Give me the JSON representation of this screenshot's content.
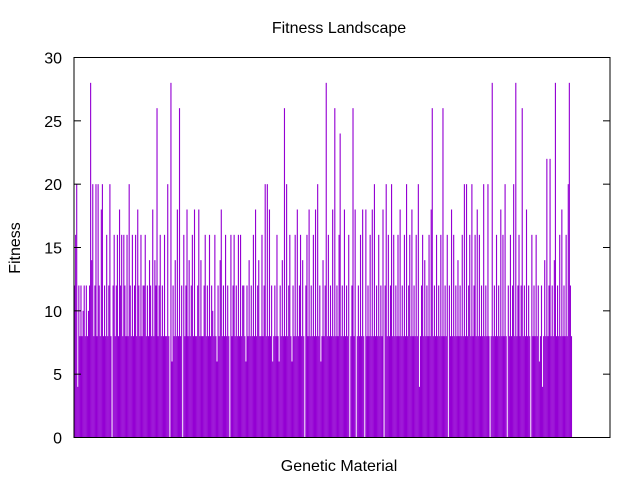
{
  "chart_data": {
    "type": "bar",
    "title": "Fitness Landscape",
    "xlabel": "Genetic Material",
    "ylabel": "Fitness",
    "ylim": [
      0,
      30
    ],
    "yticks": [
      0,
      5,
      10,
      15,
      20,
      25,
      30
    ],
    "grid": false,
    "legend": "none",
    "bar_color": "#9400d3",
    "series": [
      {
        "values": [
          12,
          16,
          20,
          4,
          12,
          8,
          12,
          8,
          10,
          12,
          8,
          12,
          8,
          10,
          12,
          28,
          14,
          20,
          8,
          12,
          20,
          8,
          20,
          12,
          8,
          18,
          20,
          8,
          12,
          8,
          16,
          8,
          12,
          20,
          8,
          0,
          12,
          16,
          8,
          12,
          16,
          8,
          18,
          12,
          16,
          8,
          16,
          12,
          8,
          16,
          8,
          20,
          12,
          8,
          16,
          8,
          12,
          16,
          8,
          18,
          12,
          8,
          16,
          8,
          12,
          12,
          16,
          8,
          12,
          8,
          14,
          12,
          8,
          18,
          8,
          14,
          12,
          26,
          8,
          12,
          16,
          8,
          12,
          8,
          16,
          8,
          8,
          20,
          8,
          0,
          28,
          6,
          12,
          8,
          14,
          8,
          18,
          8,
          26,
          8,
          12,
          0,
          16,
          8,
          12,
          18,
          8,
          14,
          8,
          12,
          16,
          8,
          18,
          8,
          8,
          12,
          18,
          8,
          14,
          8,
          8,
          12,
          16,
          8,
          12,
          8,
          16,
          8,
          12,
          10,
          8,
          16,
          8,
          6,
          12,
          8,
          14,
          18,
          8,
          12,
          8,
          16,
          8,
          12,
          8,
          0,
          16,
          8,
          12,
          16,
          8,
          12,
          8,
          16,
          8,
          16,
          8,
          12,
          12,
          8,
          6,
          12,
          8,
          14,
          8,
          12,
          8,
          16,
          8,
          18,
          8,
          12,
          14,
          8,
          8,
          16,
          8,
          12,
          20,
          8,
          20,
          8,
          18,
          8,
          12,
          6,
          8,
          12,
          8,
          16,
          8,
          6,
          12,
          8,
          14,
          8,
          26,
          8,
          20,
          8,
          12,
          16,
          8,
          6,
          12,
          8,
          16,
          8,
          18,
          8,
          12,
          16,
          8,
          14,
          8,
          0,
          12,
          16,
          8,
          18,
          8,
          12,
          8,
          16,
          8,
          18,
          8,
          20,
          8,
          12,
          6,
          8,
          14,
          8,
          12,
          28,
          8,
          16,
          8,
          12,
          8,
          18,
          8,
          26,
          8,
          12,
          8,
          16,
          24,
          8,
          12,
          8,
          18,
          8,
          12,
          8,
          16,
          0,
          8,
          12,
          26,
          8,
          18,
          0,
          8,
          12,
          8,
          16,
          8,
          18,
          8,
          0,
          18,
          8,
          12,
          8,
          16,
          8,
          18,
          8,
          20,
          8,
          12,
          8,
          16,
          8,
          12,
          8,
          18,
          0,
          12,
          20,
          8,
          16,
          8,
          12,
          20,
          8,
          16,
          8,
          12,
          8,
          16,
          8,
          18,
          8,
          12,
          8,
          16,
          8,
          20,
          8,
          12,
          16,
          8,
          18,
          8,
          12,
          8,
          16,
          8,
          20,
          4,
          8,
          12,
          16,
          8,
          14,
          8,
          12,
          8,
          16,
          8,
          18,
          26,
          8,
          12,
          8,
          16,
          8,
          12,
          8,
          16,
          8,
          26,
          8,
          12,
          8,
          16,
          0,
          12,
          8,
          18,
          8,
          16,
          8,
          12,
          8,
          14,
          8,
          12,
          8,
          16,
          8,
          20,
          8,
          20,
          8,
          12,
          16,
          8,
          20,
          8,
          12,
          16,
          8,
          18,
          8,
          16,
          8,
          12,
          8,
          20,
          8,
          12,
          8,
          20,
          8,
          0,
          8,
          28,
          8,
          12,
          8,
          16,
          8,
          12,
          8,
          18,
          8,
          16,
          8,
          20,
          8,
          0,
          12,
          8,
          16,
          8,
          12,
          20,
          8,
          28,
          8,
          12,
          16,
          8,
          12,
          26,
          8,
          12,
          8,
          18,
          8,
          12,
          8,
          0,
          16,
          8,
          12,
          8,
          16,
          8,
          12,
          6,
          8,
          12,
          4,
          8,
          14,
          8,
          22,
          8,
          12,
          22,
          8,
          12,
          8,
          14,
          28,
          8,
          12,
          8,
          16,
          8,
          18,
          8,
          12,
          8,
          16,
          8,
          20,
          28,
          12,
          8
        ]
      }
    ]
  }
}
